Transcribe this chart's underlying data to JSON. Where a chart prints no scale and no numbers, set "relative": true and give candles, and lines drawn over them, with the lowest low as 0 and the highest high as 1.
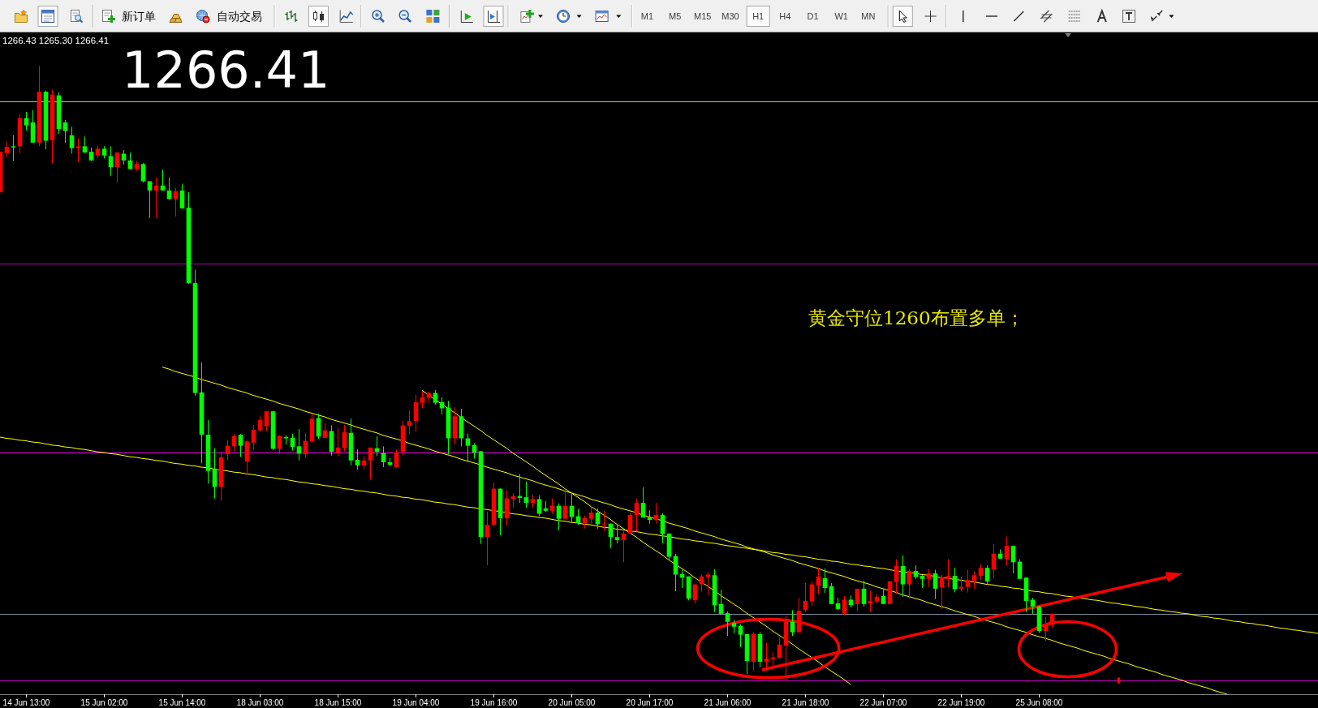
{
  "chart_data": {
    "type": "candlestick",
    "relative": true,
    "categories": [
      null,
      null,
      null,
      null,
      "14 Jun 13:00",
      null,
      null,
      null,
      null,
      null,
      null,
      null,
      null,
      null,
      null,
      null,
      "15 Jun 02:00",
      null,
      null,
      null,
      null,
      null,
      null,
      null,
      null,
      null,
      null,
      null,
      "15 Jun 14:00",
      null,
      null,
      null,
      null,
      null,
      null,
      null,
      null,
      null,
      null,
      null,
      "18 Jun 03:00",
      null,
      null,
      null,
      null,
      null,
      null,
      null,
      null,
      null,
      null,
      null,
      "18 Jun 15:00",
      null,
      null,
      null,
      null,
      null,
      null,
      null,
      null,
      null,
      null,
      null,
      "19 Jun 04:00",
      null,
      null,
      null,
      null,
      null,
      null,
      null,
      null,
      null,
      null,
      null,
      "19 Jun 16:00",
      null,
      null,
      null,
      null,
      null,
      null,
      null,
      null,
      null,
      null,
      null,
      "20 Jun 05:00",
      null,
      null,
      null,
      null,
      null,
      null,
      null,
      null,
      null,
      null,
      null,
      "20 Jun 17:00",
      null,
      null,
      null,
      null,
      null,
      null,
      null,
      null,
      null,
      null,
      null,
      "21 Jun 06:00",
      null,
      null,
      null,
      null,
      null,
      null,
      null,
      null,
      null,
      null,
      null,
      "21 Jun 18:00",
      null,
      null,
      null,
      null,
      null,
      null,
      null,
      null,
      null,
      null,
      null,
      "22 Jun 07:00",
      null,
      null,
      null,
      null,
      null,
      null,
      null,
      null,
      null,
      null,
      null,
      "22 Jun 19:00",
      null,
      null,
      null,
      null,
      null,
      null,
      null,
      null,
      null,
      null,
      null,
      "25 Jun 08:00",
      null,
      null,
      null,
      null,
      null,
      null,
      null,
      null,
      null,
      null,
      null,
      null,
      null,
      null,
      null,
      null,
      null,
      null,
      null,
      null,
      null,
      null,
      null,
      null,
      null,
      null,
      null,
      null,
      null,
      null,
      null,
      null,
      null,
      null,
      null,
      null,
      null,
      null,
      null,
      null,
      null,
      null,
      null
    ],
    "ohlc": [
      [
        0.794,
        0.86,
        0.794,
        0.86
      ],
      [
        0.858,
        0.877,
        0.852,
        0.868
      ],
      [
        0.869,
        0.887,
        0.845,
        0.867
      ],
      [
        0.869,
        0.921,
        0.858,
        0.915
      ],
      [
        0.915,
        0.925,
        0.895,
        0.903
      ],
      [
        0.908,
        0.928,
        0.875,
        0.875
      ],
      [
        0.875,
        1.0,
        0.869,
        0.958
      ],
      [
        0.958,
        0.96,
        0.864,
        0.878
      ],
      [
        0.879,
        0.961,
        0.841,
        0.953
      ],
      [
        0.952,
        0.957,
        0.889,
        0.897
      ],
      [
        0.908,
        0.912,
        0.875,
        0.894
      ],
      [
        0.887,
        0.901,
        0.857,
        0.866
      ],
      [
        0.866,
        0.882,
        0.843,
        0.869
      ],
      [
        0.869,
        0.885,
        0.858,
        0.859
      ],
      [
        0.86,
        0.867,
        0.845,
        0.846
      ],
      [
        0.854,
        0.87,
        0.85,
        0.865
      ],
      [
        0.865,
        0.869,
        0.849,
        0.854
      ],
      [
        0.853,
        0.869,
        0.821,
        0.835
      ],
      [
        0.835,
        0.859,
        0.81,
        0.859
      ],
      [
        0.857,
        0.863,
        0.839,
        0.846
      ],
      [
        0.846,
        0.859,
        0.831,
        0.832
      ],
      [
        0.832,
        0.845,
        0.829,
        0.84
      ],
      [
        0.84,
        0.842,
        0.81,
        0.812
      ],
      [
        0.812,
        0.812,
        0.752,
        0.797
      ],
      [
        0.797,
        0.818,
        0.752,
        0.805
      ],
      [
        0.805,
        0.831,
        0.797,
        0.797
      ],
      [
        0.797,
        0.818,
        0.782,
        0.783
      ],
      [
        0.783,
        0.801,
        0.755,
        0.796
      ],
      [
        0.797,
        0.808,
        0.767,
        0.768
      ],
      [
        0.769,
        0.794,
        0.645,
        0.646
      ],
      [
        0.646,
        0.668,
        0.462,
        0.467
      ],
      [
        0.468,
        0.517,
        0.352,
        0.399
      ],
      [
        0.399,
        0.423,
        0.319,
        0.34
      ],
      [
        0.343,
        0.377,
        0.295,
        0.314
      ],
      [
        0.314,
        0.371,
        0.291,
        0.362
      ],
      [
        0.367,
        0.39,
        0.357,
        0.381
      ],
      [
        0.38,
        0.4,
        0.371,
        0.397
      ],
      [
        0.399,
        0.4,
        0.363,
        0.381
      ],
      [
        0.355,
        0.39,
        0.333,
        0.388
      ],
      [
        0.386,
        0.415,
        0.374,
        0.407
      ],
      [
        0.406,
        0.429,
        0.404,
        0.423
      ],
      [
        0.413,
        0.438,
        0.405,
        0.437
      ],
      [
        0.437,
        0.438,
        0.374,
        0.376
      ],
      [
        0.376,
        0.398,
        0.367,
        0.397
      ],
      [
        0.395,
        0.398,
        0.383,
        0.393
      ],
      [
        0.394,
        0.4,
        0.373,
        0.379
      ],
      [
        0.38,
        0.408,
        0.357,
        0.368
      ],
      [
        0.367,
        0.401,
        0.361,
        0.389
      ],
      [
        0.388,
        0.433,
        0.386,
        0.425
      ],
      [
        0.426,
        0.433,
        0.392,
        0.396
      ],
      [
        0.394,
        0.418,
        0.394,
        0.406
      ],
      [
        0.405,
        0.414,
        0.365,
        0.371
      ],
      [
        0.369,
        0.41,
        0.364,
        0.378
      ],
      [
        0.377,
        0.415,
        0.372,
        0.403
      ],
      [
        0.402,
        0.425,
        0.349,
        0.357
      ],
      [
        0.358,
        0.375,
        0.342,
        0.349
      ],
      [
        0.349,
        0.364,
        0.344,
        0.357
      ],
      [
        0.357,
        0.378,
        0.326,
        0.378
      ],
      [
        0.377,
        0.396,
        0.364,
        0.371
      ],
      [
        0.369,
        0.38,
        0.346,
        0.354
      ],
      [
        0.354,
        0.361,
        0.348,
        0.35
      ],
      [
        0.346,
        0.375,
        0.345,
        0.37
      ],
      [
        0.371,
        0.422,
        0.366,
        0.414
      ],
      [
        0.413,
        0.439,
        0.399,
        0.421
      ],
      [
        0.421,
        0.464,
        0.404,
        0.452
      ],
      [
        0.451,
        0.47,
        0.442,
        0.46
      ],
      [
        0.459,
        0.469,
        0.451,
        0.467
      ],
      [
        0.467,
        0.472,
        0.448,
        0.451
      ],
      [
        0.452,
        0.46,
        0.432,
        0.442
      ],
      [
        0.443,
        0.454,
        0.367,
        0.393
      ],
      [
        0.393,
        0.444,
        0.383,
        0.429
      ],
      [
        0.429,
        0.441,
        0.38,
        0.393
      ],
      [
        0.393,
        0.401,
        0.354,
        0.381
      ],
      [
        0.382,
        0.385,
        0.36,
        0.37
      ],
      [
        0.372,
        0.372,
        0.221,
        0.232
      ],
      [
        0.232,
        0.274,
        0.186,
        0.252
      ],
      [
        0.252,
        0.321,
        0.252,
        0.311
      ],
      [
        0.311,
        0.311,
        0.235,
        0.263
      ],
      [
        0.263,
        0.308,
        0.251,
        0.295
      ],
      [
        0.294,
        0.304,
        0.279,
        0.299
      ],
      [
        0.299,
        0.335,
        0.288,
        0.296
      ],
      [
        0.297,
        0.323,
        0.28,
        0.288
      ],
      [
        0.288,
        0.301,
        0.28,
        0.294
      ],
      [
        0.294,
        0.3,
        0.266,
        0.27
      ],
      [
        0.279,
        0.291,
        0.273,
        0.275
      ],
      [
        0.275,
        0.295,
        0.27,
        0.283
      ],
      [
        0.283,
        0.287,
        0.243,
        0.262
      ],
      [
        0.262,
        0.311,
        0.262,
        0.283
      ],
      [
        0.283,
        0.304,
        0.256,
        0.265
      ],
      [
        0.266,
        0.278,
        0.252,
        0.255
      ],
      [
        0.255,
        0.267,
        0.246,
        0.263
      ],
      [
        0.262,
        0.283,
        0.254,
        0.272
      ],
      [
        0.272,
        0.279,
        0.246,
        0.253
      ],
      [
        0.253,
        0.275,
        0.242,
        0.254
      ],
      [
        0.254,
        0.254,
        0.214,
        0.232
      ],
      [
        0.232,
        0.254,
        0.222,
        0.227
      ],
      [
        0.227,
        0.242,
        0.191,
        0.238
      ],
      [
        0.238,
        0.271,
        0.238,
        0.268
      ],
      [
        0.268,
        0.295,
        0.241,
        0.288
      ],
      [
        0.288,
        0.313,
        0.264,
        0.264
      ],
      [
        0.264,
        0.276,
        0.254,
        0.26
      ],
      [
        0.26,
        0.288,
        0.254,
        0.268
      ],
      [
        0.268,
        0.271,
        0.222,
        0.237
      ],
      [
        0.238,
        0.238,
        0.194,
        0.2
      ],
      [
        0.201,
        0.205,
        0.144,
        0.171
      ],
      [
        0.172,
        0.179,
        0.149,
        0.166
      ],
      [
        0.168,
        0.168,
        0.129,
        0.132
      ],
      [
        0.129,
        0.155,
        0.124,
        0.155
      ],
      [
        0.155,
        0.17,
        0.143,
        0.168
      ],
      [
        0.167,
        0.174,
        0.137,
        0.171
      ],
      [
        0.17,
        0.18,
        0.11,
        0.121
      ],
      [
        0.123,
        0.146,
        0.107,
        0.107
      ],
      [
        0.108,
        0.111,
        0.071,
        0.094
      ],
      [
        0.092,
        0.097,
        0.075,
        0.086
      ],
      [
        0.087,
        0.09,
        0.053,
        0.073
      ],
      [
        0.074,
        0.074,
        0.009,
        0.03
      ],
      [
        0.029,
        0.077,
        0.015,
        0.074
      ],
      [
        0.074,
        0.077,
        0.02,
        0.029
      ],
      [
        0.029,
        0.06,
        0.015,
        0.034
      ],
      [
        0.033,
        0.045,
        0.02,
        0.036
      ],
      [
        0.035,
        0.068,
        0.035,
        0.057
      ],
      [
        0.055,
        0.104,
        0.0,
        0.094
      ],
      [
        0.094,
        0.113,
        0.071,
        0.077
      ],
      [
        0.077,
        0.133,
        0.077,
        0.112
      ],
      [
        0.113,
        0.157,
        0.11,
        0.128
      ],
      [
        0.127,
        0.16,
        0.12,
        0.155
      ],
      [
        0.153,
        0.181,
        0.139,
        0.168
      ],
      [
        0.165,
        0.181,
        0.141,
        0.149
      ],
      [
        0.152,
        0.157,
        0.123,
        0.123
      ],
      [
        0.124,
        0.133,
        0.113,
        0.115
      ],
      [
        0.108,
        0.136,
        0.105,
        0.13
      ],
      [
        0.13,
        0.137,
        0.117,
        0.121
      ],
      [
        0.123,
        0.148,
        0.111,
        0.148
      ],
      [
        0.148,
        0.161,
        0.119,
        0.123
      ],
      [
        0.124,
        0.145,
        0.11,
        0.128
      ],
      [
        0.127,
        0.139,
        0.124,
        0.135
      ],
      [
        0.136,
        0.147,
        0.123,
        0.123
      ],
      [
        0.123,
        0.161,
        0.123,
        0.16
      ],
      [
        0.159,
        0.196,
        0.14,
        0.185
      ],
      [
        0.185,
        0.202,
        0.135,
        0.155
      ],
      [
        0.155,
        0.18,
        0.133,
        0.177
      ],
      [
        0.177,
        0.186,
        0.164,
        0.167
      ],
      [
        0.169,
        0.17,
        0.149,
        0.164
      ],
      [
        0.164,
        0.18,
        0.151,
        0.173
      ],
      [
        0.173,
        0.179,
        0.131,
        0.148
      ],
      [
        0.15,
        0.171,
        0.115,
        0.167
      ],
      [
        0.164,
        0.196,
        0.15,
        0.169
      ],
      [
        0.169,
        0.182,
        0.142,
        0.147
      ],
      [
        0.148,
        0.168,
        0.144,
        0.151
      ],
      [
        0.151,
        0.179,
        0.142,
        0.162
      ],
      [
        0.161,
        0.177,
        0.148,
        0.17
      ],
      [
        0.169,
        0.188,
        0.162,
        0.182
      ],
      [
        0.182,
        0.186,
        0.155,
        0.16
      ],
      [
        0.179,
        0.221,
        0.164,
        0.205
      ],
      [
        0.205,
        0.212,
        0.197,
        0.197
      ],
      [
        0.196,
        0.233,
        0.185,
        0.218
      ],
      [
        0.218,
        0.218,
        0.173,
        0.191
      ],
      [
        0.192,
        0.196,
        0.164,
        0.164
      ],
      [
        0.166,
        0.166,
        0.11,
        0.128
      ],
      [
        0.13,
        0.133,
        0.107,
        0.119
      ],
      [
        0.119,
        0.12,
        0.076,
        0.079
      ],
      [
        0.079,
        0.102,
        0.063,
        0.091
      ],
      [
        0.091,
        0.108,
        0.084,
        0.107
      ],
      null,
      null,
      null,
      null,
      null,
      null,
      null,
      null,
      null,
      null,
      null,
      null,
      null,
      null,
      null,
      null,
      null,
      null,
      null,
      null,
      null,
      null,
      null,
      null,
      null,
      null,
      null,
      null,
      null,
      null,
      null,
      null,
      null,
      null,
      null,
      null,
      null,
      null,
      null,
      null,
      null
    ],
    "colors": [
      "#ff0000",
      "#ff0000",
      "#00ff00",
      "#ff0000",
      "#00ff00",
      "#00ff00",
      "#ff0000",
      "#00ff00",
      "#ff0000",
      "#00ff00",
      "#00ff00",
      "#00ff00",
      "#ff0000",
      "#00ff00",
      "#00ff00",
      "#ff0000",
      "#00ff00",
      "#00ff00",
      "#ff0000",
      "#00ff00",
      "#00ff00",
      "#ff0000",
      "#00ff00",
      "#00ff00",
      "#ff0000",
      "#00ff00",
      "#00ff00",
      "#ff0000",
      "#00ff00",
      "#00ff00",
      "#00ff00",
      "#00ff00",
      "#00ff00",
      "#00ff00",
      "#ff0000",
      "#ff0000",
      "#ff0000",
      "#00ff00",
      "#ff0000",
      "#ff0000",
      "#ff0000",
      "#ff0000",
      "#00ff00",
      "#ff0000",
      "#00ff00",
      "#00ff00",
      "#00ff00",
      "#ff0000",
      "#ff0000",
      "#00ff00",
      "#ff0000",
      "#00ff00",
      "#ff0000",
      "#ff0000",
      "#00ff00",
      "#00ff00",
      "#ff0000",
      "#ff0000",
      "#00ff00",
      "#00ff00",
      "#00ff00",
      "#ff0000",
      "#ff0000",
      "#ff0000",
      "#ff0000",
      "#ff0000",
      "#ff0000",
      "#00ff00",
      "#00ff00",
      "#00ff00",
      "#ff0000",
      "#00ff00",
      "#00ff00",
      "#00ff00",
      "#00ff00",
      "#ff0000",
      "#ff0000",
      "#00ff00",
      "#ff0000",
      "#ff0000",
      "#00ff00",
      "#00ff00",
      "#ff0000",
      "#00ff00",
      "#00ff00",
      "#ff0000",
      "#00ff00",
      "#ff0000",
      "#00ff00",
      "#00ff00",
      "#ff0000",
      "#ff0000",
      "#00ff00",
      "#ff0000",
      "#00ff00",
      "#00ff00",
      "#ff0000",
      "#ff0000",
      "#ff0000",
      "#00ff00",
      "#00ff00",
      "#ff0000",
      "#00ff00",
      "#00ff00",
      "#00ff00",
      "#00ff00",
      "#00ff00",
      "#ff0000",
      "#ff0000",
      "#ff0000",
      "#00ff00",
      "#00ff00",
      "#00ff00",
      "#00ff00",
      "#00ff00",
      "#00ff00",
      "#ff0000",
      "#00ff00",
      "#ff0000",
      "#ff0000",
      "#ff0000",
      "#ff0000",
      "#00ff00",
      "#ff0000",
      "#ff0000",
      "#ff0000",
      "#ff0000",
      "#00ff00",
      "#00ff00",
      "#00ff00",
      "#ff0000",
      "#00ff00",
      "#ff0000",
      "#00ff00",
      "#ff0000",
      "#ff0000",
      "#00ff00",
      "#ff0000",
      "#ff0000",
      "#00ff00",
      "#ff0000",
      "#00ff00",
      "#00ff00",
      "#ff0000",
      "#00ff00",
      "#ff0000",
      "#ff0000",
      "#00ff00",
      "#ff0000",
      "#ff0000",
      "#ff0000",
      "#ff0000",
      "#00ff00",
      "#ff0000",
      "#00ff00",
      "#ff0000",
      "#00ff00",
      "#00ff00",
      "#00ff00",
      "#00ff00",
      "#00ff00",
      "#ff0000",
      "#ff0000",
      null,
      null,
      null,
      null,
      null,
      null,
      null,
      null,
      null,
      null,
      null,
      null,
      null,
      null,
      null,
      null,
      null,
      null,
      null,
      null,
      null,
      null,
      null,
      null,
      null,
      null,
      null,
      null,
      null,
      null,
      null,
      null,
      null,
      null,
      null,
      null,
      null,
      null,
      null,
      null,
      null
    ],
    "series": [
      {
        "type": "line",
        "color": "#ffff00",
        "values": [
          0.395,
          0.393,
          0.392,
          0.39,
          0.389,
          0.387,
          0.386,
          0.384,
          0.382,
          0.381,
          0.379,
          0.378,
          0.376,
          0.375,
          0.373,
          0.371,
          0.37,
          0.368,
          0.367,
          0.365,
          0.363,
          0.362,
          0.36,
          0.359,
          0.357,
          0.356,
          0.354,
          0.352,
          0.351,
          0.349,
          0.348,
          0.346,
          0.345,
          0.343,
          0.341,
          0.34,
          0.338,
          0.337,
          0.335,
          0.334,
          0.332,
          0.33,
          0.329,
          0.327,
          0.326,
          0.324,
          0.322,
          0.321,
          0.319,
          0.318,
          0.316,
          0.315,
          0.313,
          0.311,
          0.31,
          0.308,
          0.307,
          0.305,
          0.304,
          0.302,
          0.3,
          0.299,
          0.297,
          0.296,
          0.294,
          0.293,
          0.291,
          0.289,
          0.288,
          0.286,
          0.285,
          0.283,
          0.281,
          0.28,
          0.278,
          0.277,
          0.275,
          0.274,
          0.272,
          0.27,
          0.269,
          0.267,
          0.266,
          0.264,
          0.263,
          0.261,
          0.259,
          0.258,
          0.256,
          0.255,
          0.253,
          0.252,
          0.25,
          0.248,
          0.247,
          0.245,
          0.244,
          0.242,
          0.241,
          0.239,
          0.237,
          0.236,
          0.234,
          0.233,
          0.231,
          0.229,
          0.228,
          0.226,
          0.225,
          0.223,
          0.222,
          0.22,
          0.218,
          0.217,
          0.215,
          0.214,
          0.212,
          0.211,
          0.209,
          0.207,
          0.206,
          0.204,
          0.203,
          0.201,
          0.2,
          0.198,
          0.196,
          0.195,
          0.193,
          0.192,
          0.19,
          0.188,
          0.187,
          0.185,
          0.184,
          0.182,
          0.181,
          0.179,
          0.177,
          0.176,
          0.174,
          0.173,
          0.171,
          0.17,
          0.168,
          0.166,
          0.165,
          0.163,
          0.162,
          0.16,
          0.159,
          0.157,
          0.155,
          0.154,
          0.152,
          0.151,
          0.149,
          0.148,
          0.146,
          0.144,
          0.143,
          0.141,
          0.14,
          0.138,
          0.136,
          0.135,
          0.133,
          0.132,
          0.13,
          0.129,
          0.127,
          0.125,
          0.124,
          0.122,
          0.121,
          0.119,
          0.118,
          0.116,
          0.114,
          0.113,
          0.111,
          0.11,
          0.108,
          0.107,
          0.105,
          0.103,
          0.102,
          0.1,
          0.099,
          0.097,
          0.095,
          0.094,
          0.092,
          0.091,
          0.089,
          0.088,
          0.086,
          0.084,
          0.083,
          0.081,
          0.08,
          0.078,
          0.077,
          0.075
        ]
      },
      {
        "type": "line",
        "color": "#ffff00",
        "values": [
          null,
          null,
          null,
          null,
          null,
          null,
          null,
          null,
          null,
          null,
          null,
          null,
          null,
          null,
          null,
          null,
          null,
          null,
          null,
          null,
          null,
          null,
          null,
          null,
          null,
          0.509,
          0.506,
          0.502,
          0.499,
          0.496,
          0.493,
          0.489,
          0.486,
          0.483,
          0.48,
          0.476,
          0.473,
          0.47,
          0.467,
          0.463,
          0.46,
          0.457,
          0.454,
          0.45,
          0.447,
          0.444,
          0.441,
          0.437,
          0.434,
          0.431,
          0.428,
          0.424,
          0.421,
          0.418,
          0.415,
          0.411,
          0.408,
          0.405,
          0.402,
          0.398,
          0.395,
          0.392,
          0.389,
          0.385,
          0.382,
          0.379,
          0.376,
          0.372,
          0.369,
          0.366,
          0.363,
          0.359,
          0.356,
          0.353,
          0.35,
          0.346,
          0.343,
          0.34,
          0.337,
          0.333,
          0.33,
          0.327,
          0.324,
          0.32,
          0.317,
          0.314,
          0.311,
          0.307,
          0.304,
          0.301,
          0.298,
          0.294,
          0.291,
          0.288,
          0.285,
          0.281,
          0.278,
          0.275,
          0.272,
          0.268,
          0.265,
          0.262,
          0.259,
          0.255,
          0.252,
          0.249,
          0.246,
          0.242,
          0.239,
          0.236,
          0.233,
          0.229,
          0.226,
          0.223,
          0.22,
          0.216,
          0.213,
          0.21,
          0.207,
          0.203,
          0.2,
          0.197,
          0.194,
          0.19,
          0.187,
          0.184,
          0.181,
          0.177,
          0.174,
          0.171,
          0.168,
          0.164,
          0.161,
          0.158,
          0.155,
          0.151,
          0.148,
          0.145,
          0.142,
          0.138,
          0.135,
          0.132,
          0.129,
          0.125,
          0.122,
          0.119,
          0.116,
          0.112,
          0.109,
          0.106,
          0.103,
          0.099,
          0.096,
          0.093,
          0.09,
          0.086,
          0.083,
          0.08,
          0.077,
          0.073,
          0.07,
          0.067,
          0.064,
          0.06,
          0.057,
          0.054,
          0.051,
          0.047,
          0.044,
          0.041,
          0.038,
          0.034,
          0.031,
          0.028,
          0.025,
          0.021,
          0.018,
          0.015,
          0.012,
          0.008,
          0.005,
          0.002,
          -0.001,
          -0.005,
          -0.008,
          -0.011,
          -0.014,
          -0.018,
          -0.021,
          -0.024,
          null,
          null,
          null,
          null,
          null,
          null,
          null,
          null,
          null,
          null,
          null,
          null,
          null,
          null
        ]
      },
      {
        "type": "line",
        "color": "#ffff00",
        "values": [
          null,
          null,
          null,
          null,
          null,
          null,
          null,
          null,
          null,
          null,
          null,
          null,
          null,
          null,
          null,
          null,
          null,
          null,
          null,
          null,
          null,
          null,
          null,
          null,
          null,
          null,
          null,
          null,
          null,
          null,
          null,
          null,
          null,
          null,
          null,
          null,
          null,
          null,
          null,
          null,
          null,
          null,
          null,
          null,
          null,
          null,
          null,
          null,
          null,
          null,
          null,
          null,
          null,
          null,
          null,
          null,
          null,
          null,
          null,
          null,
          null,
          null,
          null,
          null,
          null,
          0.471,
          0.464,
          0.456,
          0.449,
          0.442,
          0.435,
          0.427,
          0.42,
          0.413,
          0.406,
          0.398,
          0.391,
          0.384,
          0.377,
          0.369,
          0.362,
          0.355,
          0.348,
          0.34,
          0.333,
          0.326,
          0.319,
          0.311,
          0.304,
          0.297,
          0.29,
          0.282,
          0.275,
          0.268,
          0.261,
          0.253,
          0.246,
          0.239,
          0.232,
          0.224,
          0.217,
          0.21,
          0.203,
          0.195,
          0.188,
          0.181,
          0.174,
          0.166,
          0.159,
          0.152,
          0.145,
          0.137,
          0.13,
          0.123,
          0.116,
          0.108,
          0.101,
          0.094,
          0.087,
          0.079,
          0.072,
          0.065,
          0.058,
          0.05,
          0.043,
          0.036,
          0.029,
          0.021,
          0.014,
          0.007,
          0.0,
          -0.008,
          null,
          null,
          null,
          null,
          null,
          null,
          null,
          null,
          null,
          null,
          null,
          null,
          null,
          null,
          null,
          null,
          null,
          null,
          null,
          null,
          null,
          null,
          null,
          null,
          null,
          null,
          null,
          null,
          null,
          null,
          null,
          null,
          null,
          null,
          null,
          null,
          null,
          null,
          null,
          null,
          null,
          null,
          null,
          null,
          null,
          null,
          null,
          null,
          null,
          null,
          null,
          null,
          null,
          null,
          null,
          null,
          null,
          null,
          null,
          null,
          null,
          null,
          null,
          null,
          null,
          null,
          null,
          null,
          null,
          null,
          null,
          null
        ]
      }
    ],
    "ref_lines": [
      {
        "axis": "y",
        "value": 0.942,
        "color": "#d2d200"
      },
      {
        "axis": "y",
        "value": 0.678,
        "color": "#b000b0"
      },
      {
        "axis": "y",
        "value": 0.37,
        "color": "#ff00ff"
      },
      {
        "axis": "y",
        "value": 0.107,
        "color": "#778899"
      },
      {
        "axis": "y",
        "value": -0.002,
        "color": "#c800c8"
      }
    ],
    "annotations": [
      "1266.43 1265.30 1266.41",
      "1266.41",
      "黄金守位1260布置多单；",
      "新订单",
      "自动交易",
      "M1",
      "M5",
      "M15",
      "M30",
      "H1",
      "H4",
      "D1",
      "W1",
      "MN"
    ]
  }
}
